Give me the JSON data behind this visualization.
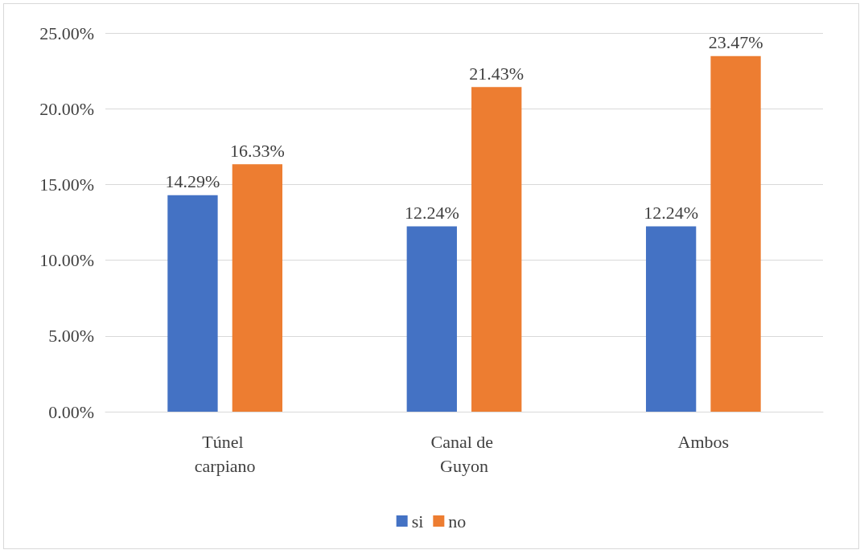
{
  "chart_data": {
    "type": "bar",
    "categories": [
      "Túnel carpiano",
      "Canal de Guyon",
      "Ambos"
    ],
    "series": [
      {
        "name": "si",
        "color": "#4472c4",
        "values": [
          14.29,
          12.24,
          12.24
        ],
        "value_labels": [
          "14.29%",
          "12.24%",
          "12.24%"
        ]
      },
      {
        "name": "no",
        "color": "#ed7d31",
        "values": [
          16.33,
          21.43,
          23.47
        ],
        "value_labels": [
          "16.33%",
          "21.43%",
          "23.47%"
        ]
      }
    ],
    "ylim": [
      0,
      25
    ],
    "yticks": [
      {
        "value": 0,
        "label": "0.00%"
      },
      {
        "value": 5,
        "label": "5.00%"
      },
      {
        "value": 10,
        "label": "10.00%"
      },
      {
        "value": 15,
        "label": "15.00%"
      },
      {
        "value": 20,
        "label": "20.00%"
      },
      {
        "value": 25,
        "label": "25.00%"
      }
    ],
    "grid": "y",
    "legend": "bottom"
  }
}
